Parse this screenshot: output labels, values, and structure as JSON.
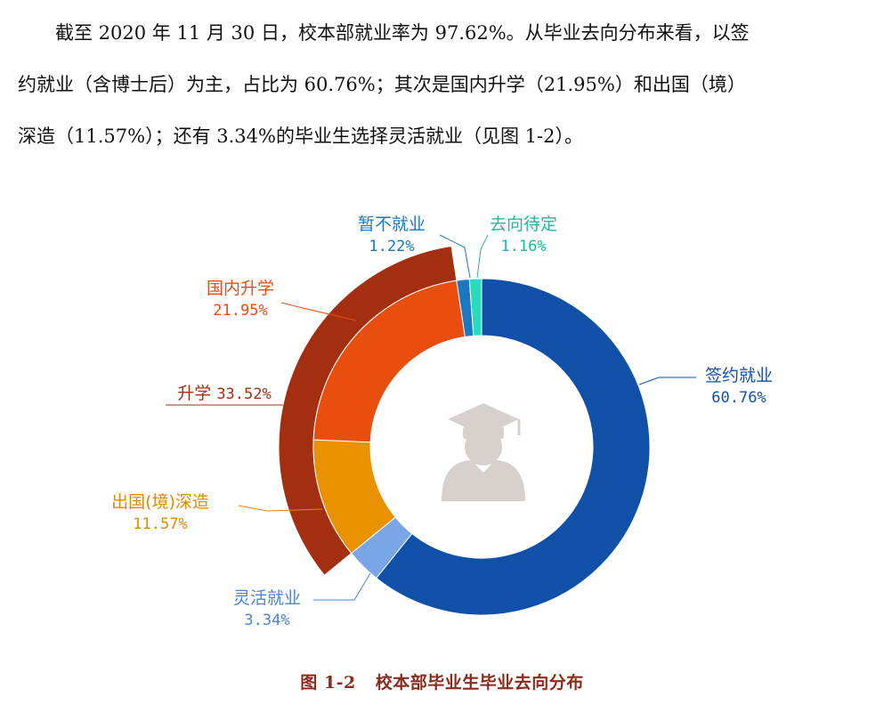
{
  "paragraph": {
    "line1": "截至 2020 年 11 月 30 日，校本部就业率为 97.62%。从毕业去向分布来看，以签",
    "line2": "约就业（含博士后）为主，占比为 60.76%；其次是国内升学（21.95%）和出国（境）",
    "line3": "深造（11.57%）；还有 3.34%的毕业生选择灵活就业（见图 1-2）。"
  },
  "caption": {
    "number": "图 1-2",
    "title": "校本部毕业生毕业去向分布"
  },
  "icon": "graduate-icon",
  "chart_data": {
    "type": "pie",
    "style": "donut",
    "inner_ring": {
      "slices": [
        {
          "name": "签约就业",
          "value": 60.76,
          "label": "60.76%",
          "color": "#1150a8"
        },
        {
          "name": "灵活就业",
          "value": 3.34,
          "label": "3.34%",
          "color": "#78a6e6"
        },
        {
          "name": "出国(境)深造",
          "value": 11.57,
          "label": "11.57%",
          "color": "#ea9100"
        },
        {
          "name": "国内升学",
          "value": 21.95,
          "label": "21.95%",
          "color": "#e84e0e"
        },
        {
          "name": "暂不就业",
          "value": 1.22,
          "label": "1.22%",
          "color": "#1a77c0"
        },
        {
          "name": "去向待定",
          "value": 1.16,
          "label": "1.16%",
          "color": "#27dbbd"
        }
      ]
    },
    "outer_ring": {
      "slices": [
        {
          "name": "升学",
          "value": 33.52,
          "label": "33.52%",
          "color": "#a32f10"
        }
      ]
    }
  }
}
